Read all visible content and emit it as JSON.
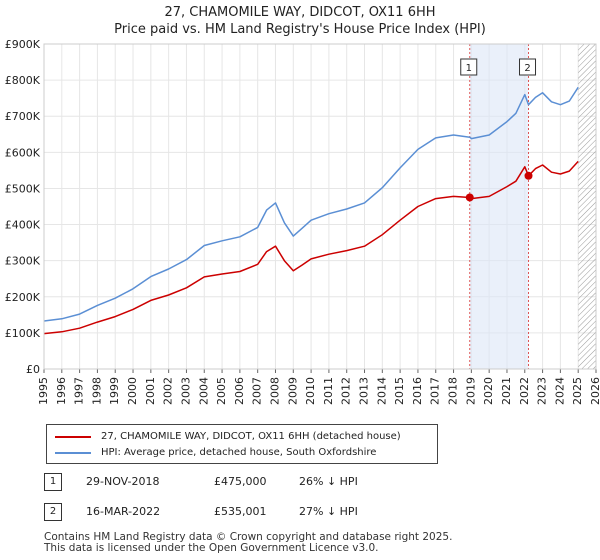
{
  "title": {
    "line1": "27, CHAMOMILE WAY, DIDCOT, OX11 6HH",
    "line2": "Price paid vs. HM Land Registry's House Price Index (HPI)"
  },
  "chart_data": {
    "type": "line",
    "xlim": [
      1995,
      2026
    ],
    "ylim": [
      0,
      900000
    ],
    "y_ticks": [
      0,
      100000,
      200000,
      300000,
      400000,
      500000,
      600000,
      700000,
      800000,
      900000
    ],
    "y_tick_labels": [
      "£0",
      "£100K",
      "£200K",
      "£300K",
      "£400K",
      "£500K",
      "£600K",
      "£700K",
      "£800K",
      "£900K"
    ],
    "x_ticks": [
      1995,
      1996,
      1997,
      1998,
      1999,
      2000,
      2001,
      2002,
      2003,
      2004,
      2005,
      2006,
      2007,
      2008,
      2009,
      2010,
      2011,
      2012,
      2013,
      2014,
      2015,
      2016,
      2017,
      2018,
      2019,
      2020,
      2021,
      2022,
      2023,
      2024,
      2025,
      2026
    ],
    "x_tick_labels": [
      "1995",
      "1996",
      "1997",
      "1998",
      "1999",
      "2000",
      "2001",
      "2002",
      "2003",
      "2004",
      "2005",
      "2006",
      "2007",
      "2008",
      "2009",
      "2010",
      "2011",
      "2012",
      "2013",
      "2014",
      "2015",
      "2016",
      "2017",
      "2018",
      "2019",
      "2020",
      "2021",
      "2022",
      "2023",
      "2024",
      "2025",
      "2026"
    ],
    "shaded_region": [
      2018.91,
      2022.21
    ],
    "hatched_from": 2025.0,
    "series": [
      {
        "name": "27, CHAMOMILE WAY, DIDCOT, OX11 6HH (detached house)",
        "color": "#cc0000",
        "x": [
          1995,
          1996,
          1997,
          1998,
          1999,
          2000,
          2001,
          2002,
          2003,
          2004,
          2005,
          2006,
          2007,
          2007.5,
          2008,
          2008.5,
          2009,
          2009.5,
          2010,
          2011,
          2012,
          2013,
          2014,
          2015,
          2016,
          2017,
          2018,
          2018.91,
          2019,
          2020,
          2021,
          2021.5,
          2022,
          2022.21,
          2022.6,
          2023,
          2023.5,
          2024,
          2024.5,
          2025
        ],
        "values": [
          98000,
          103000,
          113000,
          130000,
          145000,
          165000,
          190000,
          205000,
          225000,
          255000,
          263000,
          270000,
          290000,
          325000,
          340000,
          300000,
          272000,
          288000,
          305000,
          318000,
          328000,
          340000,
          372000,
          412000,
          450000,
          472000,
          478000,
          475000,
          472000,
          478000,
          505000,
          520000,
          560000,
          535001,
          555000,
          565000,
          545000,
          540000,
          548000,
          575000
        ]
      },
      {
        "name": "HPI: Average price, detached house, South Oxfordshire",
        "color": "#5b8fd4",
        "x": [
          1995,
          1996,
          1997,
          1998,
          1999,
          2000,
          2001,
          2002,
          2003,
          2004,
          2005,
          2006,
          2007,
          2007.5,
          2008,
          2008.5,
          2009,
          2009.5,
          2010,
          2011,
          2012,
          2013,
          2014,
          2015,
          2016,
          2017,
          2018,
          2018.91,
          2019,
          2020,
          2021,
          2021.5,
          2022,
          2022.21,
          2022.6,
          2023,
          2023.5,
          2024,
          2024.5,
          2025
        ],
        "values": [
          133000,
          139000,
          152000,
          176000,
          196000,
          222000,
          256000,
          277000,
          303000,
          342000,
          355000,
          366000,
          392000,
          440000,
          460000,
          405000,
          368000,
          390000,
          412000,
          430000,
          443000,
          460000,
          502000,
          557000,
          608000,
          640000,
          648000,
          642000,
          638000,
          648000,
          685000,
          708000,
          760000,
          732000,
          752000,
          765000,
          740000,
          732000,
          742000,
          780000
        ]
      }
    ],
    "sales": [
      {
        "label": "1",
        "x": 2018.91,
        "value": 475000
      },
      {
        "label": "2",
        "x": 2022.21,
        "value": 535001
      }
    ]
  },
  "legend": [
    {
      "label": "27, CHAMOMILE WAY, DIDCOT, OX11 6HH (detached house)",
      "color": "#cc0000"
    },
    {
      "label": "HPI: Average price, detached house, South Oxfordshire",
      "color": "#5b8fd4"
    }
  ],
  "transactions": [
    {
      "num": "1",
      "date": "29-NOV-2018",
      "price": "£475,000",
      "hpi": "26% ↓ HPI"
    },
    {
      "num": "2",
      "date": "16-MAR-2022",
      "price": "£535,001",
      "hpi": "27% ↓ HPI"
    }
  ],
  "footer": {
    "line1": "Contains HM Land Registry data © Crown copyright and database right 2025.",
    "line2": "This data is licensed under the Open Government Licence v3.0."
  }
}
